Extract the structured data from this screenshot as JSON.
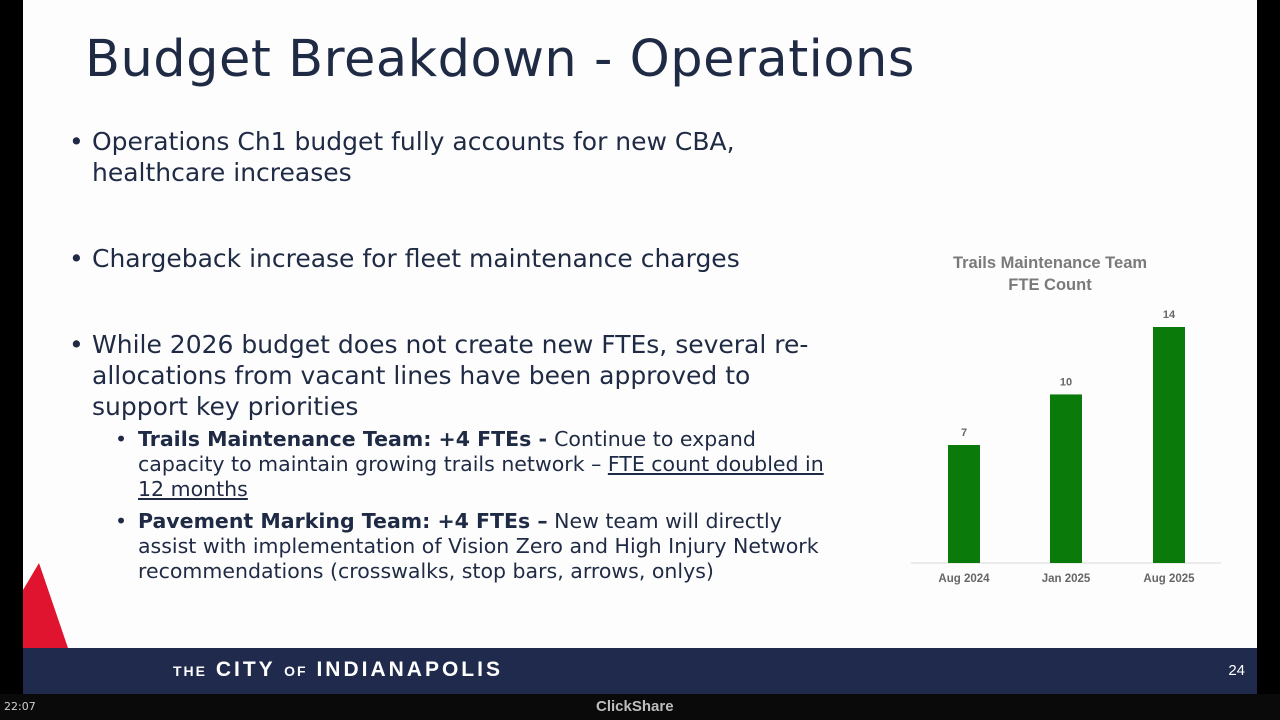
{
  "slide": {
    "title": "Budget Breakdown - Operations",
    "bullets": [
      {
        "text": "Operations Ch1 budget fully accounts for new CBA, healthcare increases"
      },
      {
        "text": "Chargeback increase for fleet maintenance charges"
      },
      {
        "text": "While 2026 budget does not create new FTEs, several re-allocations from vacant lines have been approved to support key priorities"
      }
    ],
    "sub_bullets": [
      {
        "bold": "Trails Maintenance Team: +4 FTEs",
        "sep": " - ",
        "text": "Continue to expand capacity to maintain growing trails network – ",
        "underline": "FTE count doubled in 12 months"
      },
      {
        "bold": "Pavement Marking Team: +4 FTEs –",
        "text": " New team will directly assist with implementation of Vision Zero and High Injury Network recommendations (crosswalks, stop bars, arrows, onlys)"
      }
    ],
    "bullet_glyph": "•",
    "page_number": "24"
  },
  "footer": {
    "brand_prefix": "THE",
    "brand_city": "CITY",
    "brand_of": "OF",
    "brand_name": "INDIANAPOLIS"
  },
  "chart_data": {
    "type": "bar",
    "title": [
      "Trails Maintenance Team",
      "FTE Count"
    ],
    "categories": [
      "Aug 2024",
      "Jan 2025",
      "Aug 2025"
    ],
    "values": [
      7,
      10,
      14
    ],
    "data_labels": [
      "7",
      "10",
      "14"
    ],
    "bar_color": "#0a7a0a",
    "ylim": [
      0,
      14
    ],
    "grid": false,
    "legend": "none"
  },
  "overlay": {
    "clock": "22:07",
    "app_label": "ClickShare"
  },
  "colors": {
    "title_text": "#1f2a44",
    "footer_bg": "#1f2a4d",
    "accent_red": "#e0142e",
    "bar_green": "#0a7a0a"
  }
}
